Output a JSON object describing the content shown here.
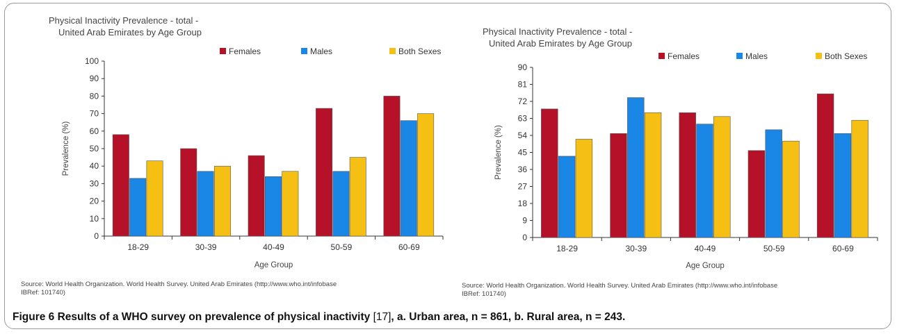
{
  "chart_data": [
    {
      "type": "bar",
      "title": "Physical Inactivity Prevalence - total -",
      "subtitle": "United Arab Emirates by Age Group",
      "xlabel": "Age Group",
      "ylabel": "Prevalence (%)",
      "ylim": [
        0,
        100
      ],
      "yticks": [
        "0",
        "10",
        "20",
        "30",
        "40",
        "50",
        "60",
        "70",
        "80",
        "90",
        "100"
      ],
      "categories": [
        "18-29",
        "30-39",
        "40-49",
        "50-59",
        "60-69"
      ],
      "series": [
        {
          "name": "Females",
          "color": "#b5122a",
          "values": [
            58,
            50,
            46,
            73,
            80
          ]
        },
        {
          "name": "Males",
          "color": "#1a86e6",
          "values": [
            33,
            37,
            34,
            37,
            66
          ]
        },
        {
          "name": "Both Sexes",
          "color": "#f5c013",
          "values": [
            43,
            40,
            37,
            45,
            70
          ]
        }
      ],
      "legend": "top-right",
      "grid": false,
      "source_line1": "Source: World Health Organization. World Health Survey. United Arab Emirates  (http://www.who.int/infobase",
      "source_line2": "IBRef: 101740)"
    },
    {
      "type": "bar",
      "title": "Physical Inactivity Prevalence - total -",
      "subtitle": "United Arab Emirates by Age Group",
      "xlabel": "Age Group",
      "ylabel": "Prevalence (%)",
      "ylim": [
        0,
        90
      ],
      "yticks": [
        "0",
        "9",
        "18",
        "27",
        "36",
        "45",
        "54",
        "63",
        "72",
        "81",
        "90"
      ],
      "categories": [
        "18-29",
        "30-39",
        "40-49",
        "50-59",
        "60-69"
      ],
      "series": [
        {
          "name": "Females",
          "color": "#b5122a",
          "values": [
            68,
            55,
            66,
            46,
            76
          ]
        },
        {
          "name": "Males",
          "color": "#1a86e6",
          "values": [
            43,
            74,
            60,
            57,
            55
          ]
        },
        {
          "name": "Both Sexes",
          "color": "#f5c013",
          "values": [
            52,
            66,
            64,
            51,
            62
          ]
        }
      ],
      "legend": "top-right",
      "grid": false,
      "source_line1": "Source: World Health Organization. World Health Survey. United Arab Emirates  (http://www.who.int/infobase",
      "source_line2": "IBRef: 101740)"
    }
  ],
  "caption": {
    "label": "Figure 6",
    "text_before_ref": " Results of a WHO survey on prevalence of physical inactivity ",
    "ref": "[17]",
    "text_after_ref": ", a. Urban area, n = 861, b. Rural area, n = 243."
  }
}
